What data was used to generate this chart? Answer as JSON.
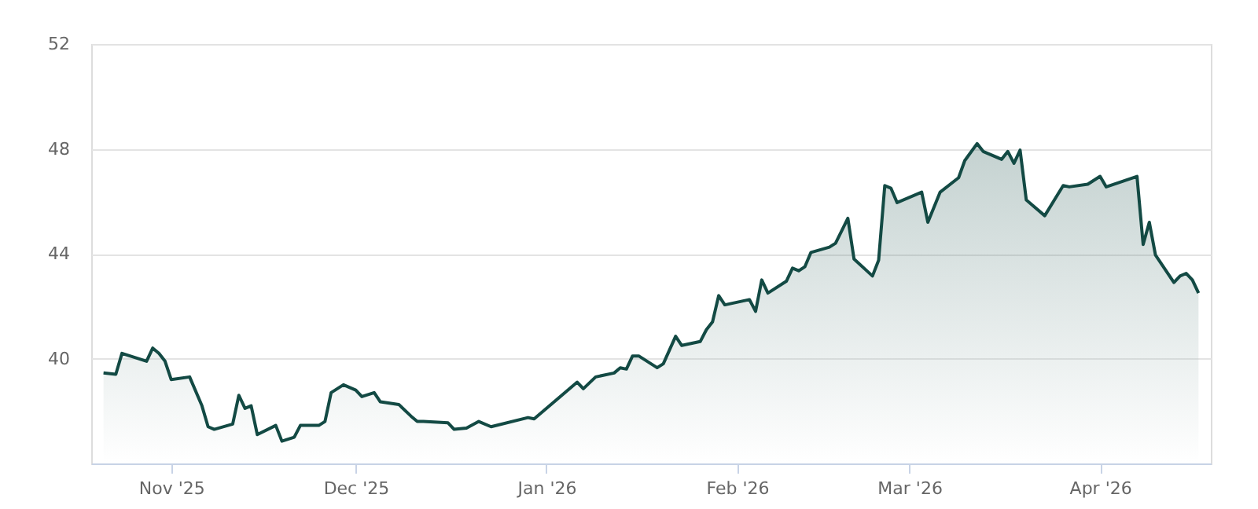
{
  "chart_data": {
    "type": "area",
    "x": [
      "2025-10-21",
      "2025-10-23",
      "2025-10-24",
      "2025-10-28",
      "2025-10-29",
      "2025-10-30",
      "2025-10-31",
      "2025-11-01",
      "2025-11-04",
      "2025-11-06",
      "2025-11-07",
      "2025-11-08",
      "2025-11-11",
      "2025-11-12",
      "2025-11-13",
      "2025-11-14",
      "2025-11-15",
      "2025-11-18",
      "2025-11-19",
      "2025-11-21",
      "2025-11-22",
      "2025-11-25",
      "2025-11-26",
      "2025-11-27",
      "2025-11-29",
      "2025-12-01",
      "2025-12-02",
      "2025-12-04",
      "2025-12-05",
      "2025-12-08",
      "2025-12-10",
      "2025-12-11",
      "2025-12-12",
      "2025-12-16",
      "2025-12-17",
      "2025-12-19",
      "2025-12-21",
      "2025-12-23",
      "2025-12-29",
      "2025-12-30",
      "2026-01-06",
      "2026-01-07",
      "2026-01-09",
      "2026-01-12",
      "2026-01-13",
      "2026-01-14",
      "2026-01-15",
      "2026-01-16",
      "2026-01-19",
      "2026-01-20",
      "2026-01-22",
      "2026-01-23",
      "2026-01-26",
      "2026-01-27",
      "2026-01-28",
      "2026-01-29",
      "2026-01-30",
      "2026-02-03",
      "2026-02-04",
      "2026-02-05",
      "2026-02-06",
      "2026-02-09",
      "2026-02-10",
      "2026-02-11",
      "2026-02-12",
      "2026-02-13",
      "2026-02-16",
      "2026-02-17",
      "2026-02-19",
      "2026-02-20",
      "2026-02-23",
      "2026-02-24",
      "2026-02-25",
      "2026-02-26",
      "2026-02-27",
      "2026-03-03",
      "2026-03-04",
      "2026-03-06",
      "2026-03-09",
      "2026-03-10",
      "2026-03-12",
      "2026-03-13",
      "2026-03-16",
      "2026-03-17",
      "2026-03-18",
      "2026-03-19",
      "2026-03-20",
      "2026-03-23",
      "2026-03-26",
      "2026-03-27",
      "2026-03-30",
      "2026-04-01",
      "2026-04-02",
      "2026-04-07",
      "2026-04-08",
      "2026-04-09",
      "2026-04-10",
      "2026-04-13",
      "2026-04-14",
      "2026-04-15",
      "2026-04-16",
      "2026-04-17"
    ],
    "series": [
      {
        "color": "#134a44",
        "values": [
          39.45,
          39.4,
          40.2,
          39.9,
          40.4,
          40.2,
          39.9,
          39.2,
          39.3,
          38.2,
          37.4,
          37.3,
          37.5,
          38.6,
          38.1,
          38.2,
          37.1,
          37.45,
          36.85,
          37.0,
          37.45,
          37.45,
          37.6,
          38.7,
          39.0,
          38.8,
          38.55,
          38.7,
          38.35,
          38.25,
          37.8,
          37.6,
          37.6,
          37.55,
          37.3,
          37.35,
          37.6,
          37.4,
          37.75,
          37.7,
          39.1,
          38.85,
          39.3,
          39.45,
          39.65,
          39.6,
          40.1,
          40.1,
          39.65,
          39.8,
          40.85,
          40.5,
          40.65,
          41.1,
          41.4,
          42.4,
          42.05,
          42.25,
          41.8,
          43.0,
          42.5,
          42.95,
          43.45,
          43.35,
          43.5,
          44.05,
          44.25,
          44.4,
          45.35,
          43.8,
          43.15,
          43.75,
          46.6,
          46.5,
          45.95,
          46.35,
          45.2,
          46.35,
          46.9,
          47.55,
          48.2,
          47.9,
          47.6,
          47.9,
          47.45,
          47.95,
          46.05,
          45.45,
          46.6,
          46.55,
          46.65,
          46.95,
          46.55,
          46.95,
          44.35,
          45.2,
          43.95,
          42.9,
          43.15,
          43.25,
          43.0,
          42.5
        ]
      }
    ],
    "xlim": [
      "2025-10-19",
      "2026-04-19"
    ],
    "xticks": [
      {
        "value": "2025-11-01",
        "label": "Nov '25"
      },
      {
        "value": "2025-12-01",
        "label": "Dec '25"
      },
      {
        "value": "2026-01-01",
        "label": "Jan '26"
      },
      {
        "value": "2026-02-01",
        "label": "Feb '26"
      },
      {
        "value": "2026-03-01",
        "label": "Mar '26"
      },
      {
        "value": "2026-04-01",
        "label": "Apr '26"
      }
    ],
    "ylim": [
      36,
      52
    ],
    "yticks": [
      40,
      44,
      48,
      52
    ],
    "grid": "y"
  }
}
